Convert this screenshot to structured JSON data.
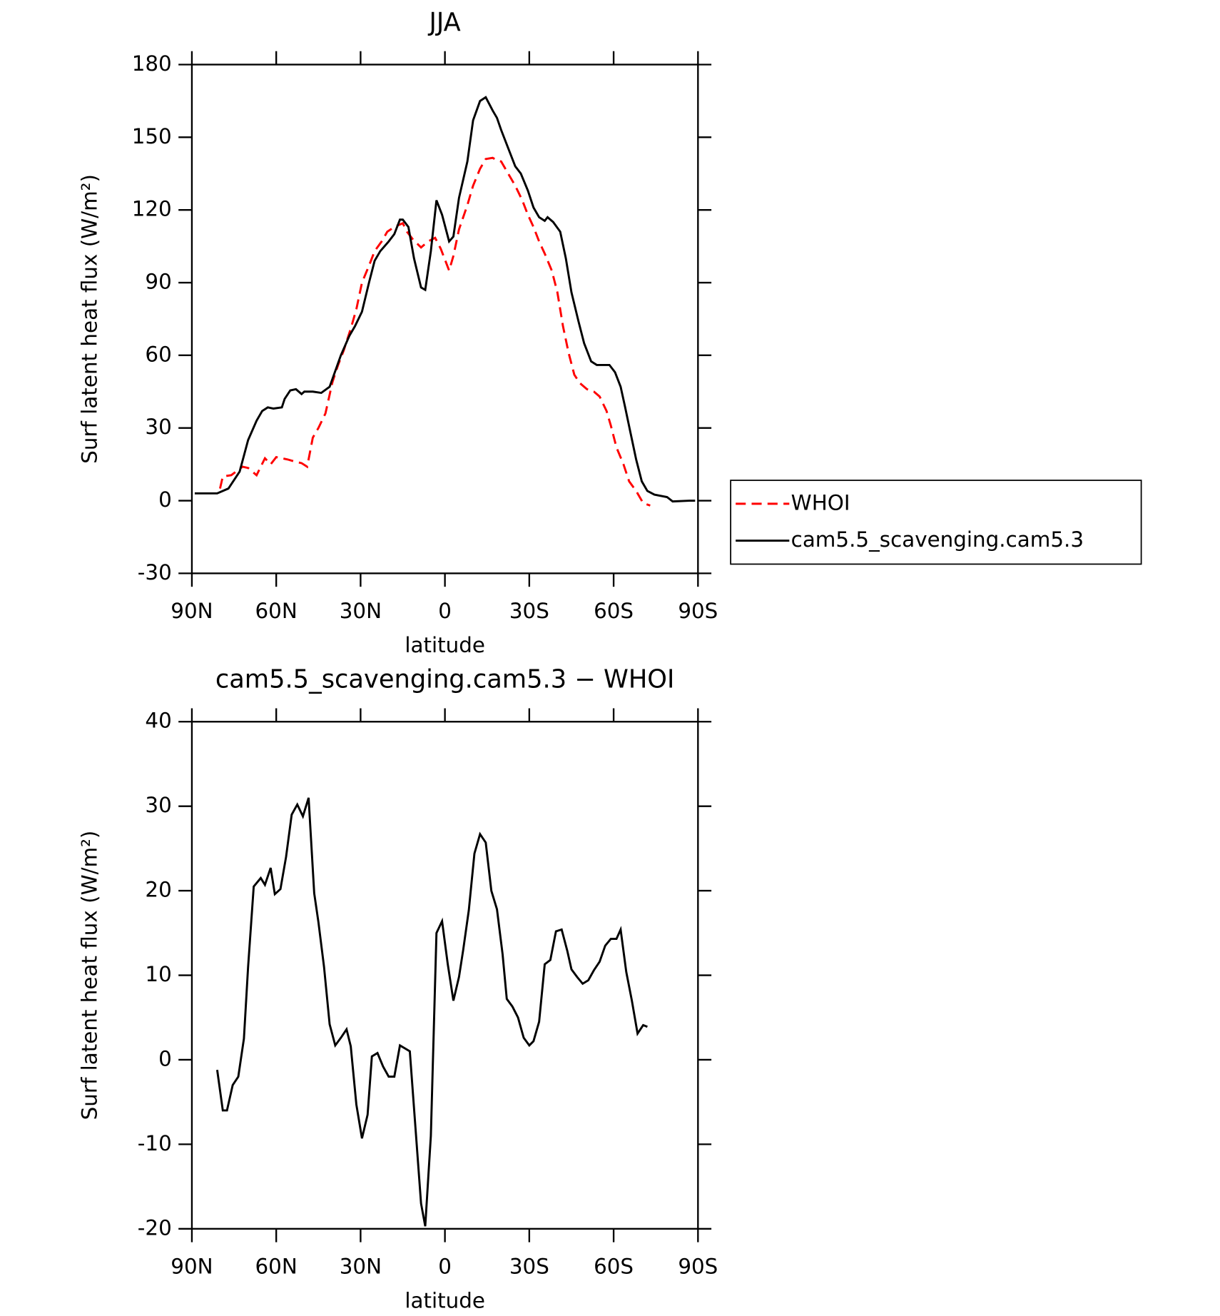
{
  "chart_data": [
    {
      "type": "line",
      "title": "JJA",
      "xlabel": "latitude",
      "ylabel": "Surf latent heat flux (W/m²)",
      "xlim": [
        90,
        -90
      ],
      "xticks": [
        {
          "value": 90,
          "label": "90N"
        },
        {
          "value": 60,
          "label": "60N"
        },
        {
          "value": 30,
          "label": "30N"
        },
        0,
        {
          "value": -30,
          "label": "30S"
        },
        {
          "value": -60,
          "label": "60S"
        },
        {
          "value": -90,
          "label": "90S"
        }
      ],
      "ylim": [
        -30,
        180
      ],
      "yticks": [
        -30,
        0,
        30,
        60,
        90,
        120,
        150,
        180
      ],
      "legend": "right",
      "series": [
        {
          "name": "WHOI",
          "color": "#ff0000",
          "dashed": true,
          "x": [
            80,
            79,
            76,
            72,
            70,
            67,
            64,
            62,
            60,
            58,
            56,
            53,
            51,
            49,
            47,
            45,
            42.5,
            40,
            38,
            36,
            33.5,
            31.5,
            29.5,
            27,
            25,
            22.5,
            20.5,
            18,
            15,
            13.5,
            11.5,
            8.5,
            6,
            3.5,
            1.5,
            -1.5,
            -3,
            -5,
            -8,
            -10,
            -12.5,
            -14.5,
            -17,
            -18.5,
            -20,
            -23,
            -25,
            -27.5,
            -29.5,
            -31.5,
            -33.5,
            -35.5,
            -38,
            -40,
            -42,
            -44,
            -46,
            -48,
            -50.5,
            -53,
            -55,
            -57.5,
            -59,
            -61,
            -63.5,
            -65.5,
            -68,
            -70.5,
            -73
          ],
          "values": [
            5,
            10,
            10.5,
            14,
            13.5,
            10.5,
            17.5,
            15,
            18,
            17.5,
            17,
            16,
            15.5,
            14,
            26,
            30,
            36,
            49,
            56,
            62,
            71,
            79,
            90,
            97,
            103,
            107,
            111,
            113,
            114.5,
            111,
            108,
            104.5,
            107,
            108.5,
            104,
            95,
            101,
            112,
            122,
            130,
            137,
            141,
            141.5,
            140.5,
            140,
            134,
            130,
            124,
            118,
            113,
            107,
            102,
            95,
            86,
            72,
            61,
            52,
            48.5,
            46,
            45,
            43,
            37,
            31,
            22,
            15,
            8,
            4,
            -1,
            -2
          ]
        },
        {
          "name": "cam5.5_scavenging.cam5.3",
          "color": "#000000",
          "dashed": false,
          "x": [
            89,
            81,
            77,
            73,
            70,
            67,
            65,
            63,
            61,
            58,
            57,
            55,
            53,
            51,
            50,
            47,
            44,
            41,
            37,
            34,
            32,
            29.5,
            27,
            25,
            23,
            20,
            18,
            16,
            15,
            13,
            11,
            8.5,
            7,
            5,
            3,
            1,
            -1.5,
            -3,
            -5,
            -8,
            -10,
            -12.5,
            -14.5,
            -17,
            -18.5,
            -20,
            -23,
            -25,
            -27,
            -29.5,
            -31.5,
            -33.5,
            -35.5,
            -36.5,
            -38.5,
            -41,
            -43,
            -45,
            -47.5,
            -49.5,
            -52,
            -54,
            -56.5,
            -58.5,
            -60.5,
            -62.5,
            -64,
            -66,
            -68,
            -70,
            -72,
            -74.5,
            -79,
            -81,
            -87,
            -89
          ],
          "values": [
            3,
            3,
            5,
            12,
            25,
            33,
            37,
            38.5,
            38,
            38.5,
            42,
            45.5,
            46,
            44,
            45,
            45,
            44.5,
            47,
            60,
            68,
            72,
            78,
            90,
            99,
            103,
            107,
            110,
            116,
            116,
            113,
            100,
            88,
            87,
            103,
            124,
            118,
            107,
            109,
            125,
            140,
            157,
            165,
            166.5,
            161,
            158,
            153,
            144,
            138,
            135,
            128,
            121,
            117,
            115.5,
            117,
            115,
            111,
            100,
            86,
            74,
            65,
            57.5,
            56,
            56,
            56,
            53,
            47,
            39,
            28,
            17,
            8,
            4,
            2.5,
            1.5,
            -0.3,
            0,
            0
          ]
        }
      ]
    },
    {
      "type": "line",
      "title": "cam5.5_scavenging.cam5.3 − WHOI",
      "xlabel": "latitude",
      "ylabel": "Surf latent heat flux (W/m²)",
      "xlim": [
        90,
        -90
      ],
      "xticks": [
        {
          "value": 90,
          "label": "90N"
        },
        {
          "value": 60,
          "label": "60N"
        },
        {
          "value": 30,
          "label": "30N"
        },
        0,
        {
          "value": -30,
          "label": "30S"
        },
        {
          "value": -60,
          "label": "60S"
        },
        {
          "value": -90,
          "label": "90S"
        }
      ],
      "ylim": [
        -20,
        40
      ],
      "yticks": [
        -20,
        -10,
        0,
        10,
        20,
        30,
        40
      ],
      "series": [
        {
          "color": "#000000",
          "dashed": false,
          "x": [
            81,
            79,
            77.5,
            75.5,
            73.5,
            71.5,
            70,
            68,
            65.5,
            64,
            62,
            60.5,
            58.5,
            56.5,
            54.5,
            52.5,
            50.5,
            48.5,
            46.5,
            45,
            43,
            41,
            39,
            37,
            35,
            33.5,
            31.5,
            29.5,
            27.5,
            26,
            24,
            22,
            20,
            18,
            16,
            14,
            12.5,
            10.5,
            8.5,
            7,
            5,
            3,
            1,
            -1,
            -3,
            -5,
            -6.5,
            -8.5,
            -10.5,
            -12.5,
            -14.5,
            -16.5,
            -18.5,
            -20.5,
            -22,
            -24,
            -26,
            -28,
            -30,
            -31.5,
            -33.5,
            -35.5,
            -37.5,
            -39.5,
            -41.5,
            -43.5,
            -45,
            -47,
            -49,
            -51,
            -53,
            -55,
            -57,
            -59,
            -61,
            -62.5,
            -64.5,
            -66.5,
            -68.5,
            -70.5,
            -72
          ],
          "values": [
            -1.2,
            -6,
            -6,
            -3,
            -2,
            2.5,
            11,
            20.5,
            21.5,
            20.7,
            22.7,
            19.6,
            20.2,
            24,
            29,
            30.2,
            28.8,
            31,
            19.7,
            16.3,
            11,
            4.2,
            1.7,
            2.6,
            3.6,
            1.6,
            -5.3,
            -9.3,
            -6.5,
            0.4,
            0.8,
            -0.8,
            -2,
            -2,
            1.7,
            1.3,
            1,
            -8,
            -17,
            -19.7,
            -9,
            15,
            16.4,
            11.3,
            7,
            9.8,
            13,
            17.7,
            24.4,
            26.7,
            25.7,
            20,
            17.8,
            12.5,
            7.2,
            6.3,
            5,
            2.6,
            1.7,
            2.2,
            4.5,
            11.3,
            11.8,
            15.2,
            15.4,
            12.9,
            10.7,
            9.8,
            9,
            9.4,
            10.6,
            11.6,
            13.5,
            14.3,
            14.3,
            15.4,
            10.4,
            7,
            3.1,
            4.1,
            3.9
          ]
        }
      ]
    }
  ]
}
